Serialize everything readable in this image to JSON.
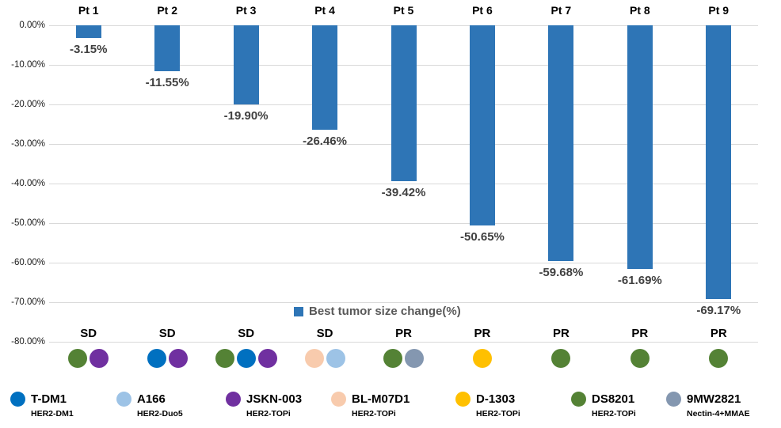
{
  "chart_data": {
    "type": "bar",
    "legend_label": "Best tumor size change(%)",
    "bar_color": "#2E75B6",
    "grid": true,
    "legend_position": "inside-bottom-center",
    "categories": [
      "Pt 1",
      "Pt 2",
      "Pt 3",
      "Pt 4",
      "Pt 5",
      "Pt 6",
      "Pt 7",
      "Pt 8",
      "Pt 9"
    ],
    "values": [
      -3.15,
      -11.55,
      -19.9,
      -26.46,
      -39.42,
      -50.65,
      -59.68,
      -61.69,
      -69.17
    ],
    "value_labels": [
      "-3.15%",
      "-11.55%",
      "-19.90%",
      "-26.46%",
      "-39.42%",
      "-50.65%",
      "-59.68%",
      "-61.69%",
      "-69.17%"
    ],
    "statuses": [
      "SD",
      "SD",
      "SD",
      "SD",
      "PR",
      "PR",
      "PR",
      "PR",
      "PR"
    ],
    "treatments_by_patient": [
      [
        "DS8201",
        "JSKN-003"
      ],
      [
        "T-DM1",
        "JSKN-003"
      ],
      [
        "DS8201",
        "T-DM1",
        "JSKN-003"
      ],
      [
        "BL-M07D1",
        "A166"
      ],
      [
        "DS8201",
        "9MW2821"
      ],
      [
        "D-1303"
      ],
      [
        "DS8201"
      ],
      [
        "DS8201"
      ],
      [
        "DS8201"
      ]
    ],
    "y_ticks": [
      "0.00%",
      "-10.00%",
      "-20.00%",
      "-30.00%",
      "-40.00%",
      "-50.00%",
      "-60.00%",
      "-70.00%",
      "-80.00%"
    ],
    "ylim": [
      0,
      -80
    ],
    "xlabel": "",
    "ylabel": ""
  },
  "drug_colors": {
    "T-DM1": "#0070C0",
    "A166": "#9DC3E6",
    "JSKN-003": "#7030A0",
    "BL-M07D1": "#F8CBAD",
    "D-1303": "#FFC000",
    "DS8201": "#548235",
    "9MW2821": "#8497B0"
  },
  "legend": {
    "items": [
      {
        "name": "T-DM1",
        "mechanism": "HER2-DM1",
        "color": "#0070C0"
      },
      {
        "name": "A166",
        "mechanism": "HER2-Duo5",
        "color": "#9DC3E6"
      },
      {
        "name": "JSKN-003",
        "mechanism": "HER2-TOPi",
        "color": "#7030A0"
      },
      {
        "name": "BL-M07D1",
        "mechanism": "HER2-TOPi",
        "color": "#F8CBAD"
      },
      {
        "name": "D-1303",
        "mechanism": "HER2-TOPi",
        "color": "#FFC000"
      },
      {
        "name": "DS8201",
        "mechanism": "HER2-TOPi",
        "color": "#548235"
      },
      {
        "name": "9MW2821",
        "mechanism": "Nectin-4+MMAE",
        "color": "#8497B0"
      }
    ]
  }
}
